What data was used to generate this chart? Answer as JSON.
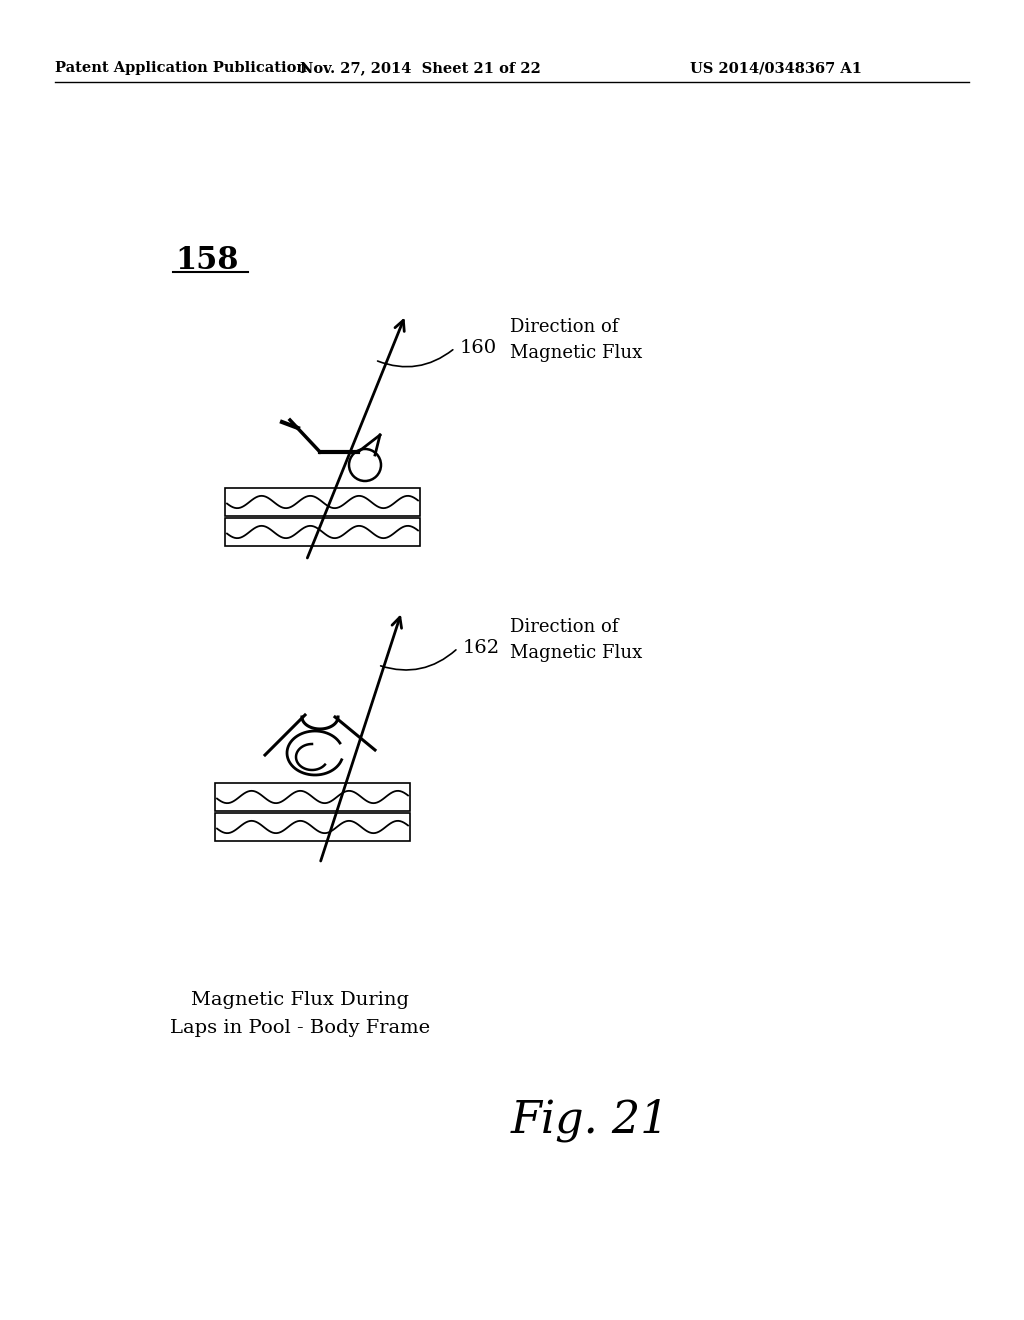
{
  "bg_color": "#ffffff",
  "header_left": "Patent Application Publication",
  "header_mid": "Nov. 27, 2014  Sheet 21 of 22",
  "header_right": "US 2014/0348367 A1",
  "label_158": "158",
  "fig_label": "Fig. 21",
  "caption_line1": "Magnetic Flux During",
  "caption_line2": "Laps in Pool - Body Frame",
  "arrow1_label": "160",
  "arrow2_label": "162",
  "direction_text": "Direction of\nMagnetic Flux"
}
